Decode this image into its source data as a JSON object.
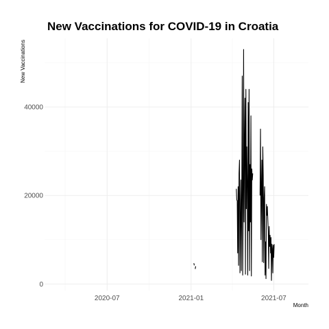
{
  "chart_data": {
    "type": "line",
    "title": "New Vaccinations for COVID-19 in Croatia",
    "xlabel": "Month",
    "ylabel": "New Vaccinations",
    "x_range": [
      "2020-02-15",
      "2021-09-15"
    ],
    "ylim": [
      -1500,
      55500
    ],
    "x_ticks": [
      {
        "date": "2020-07-01",
        "label": "2020-07"
      },
      {
        "date": "2021-01-01",
        "label": "2021-01"
      },
      {
        "date": "2021-07-01",
        "label": "2021-07"
      }
    ],
    "y_ticks": [
      {
        "value": 0,
        "label": "0"
      },
      {
        "value": 20000,
        "label": "20000"
      },
      {
        "value": 40000,
        "label": "40000"
      }
    ],
    "grid": true,
    "line_color": "#000000",
    "series": [
      {
        "segments": [
          [
            [
              "2021-01-07",
              4700
            ],
            [
              "2021-01-08",
              4200
            ]
          ],
          [
            [
              "2021-01-10",
              3400
            ],
            [
              "2021-01-11",
              4000
            ]
          ],
          [
            [
              "2021-04-10",
              21500
            ],
            [
              "2021-04-11",
              19000
            ],
            [
              "2021-04-12",
              18800
            ],
            [
              "2021-04-13",
              7000
            ],
            [
              "2021-04-14",
              22000
            ],
            [
              "2021-04-15",
              4200
            ],
            [
              "2021-04-16",
              25000
            ],
            [
              "2021-04-17",
              28000
            ],
            [
              "2021-04-18",
              2500
            ],
            [
              "2021-04-19",
              15000
            ],
            [
              "2021-04-20",
              23500
            ],
            [
              "2021-04-21",
              3000
            ],
            [
              "2021-04-22",
              21000
            ],
            [
              "2021-04-23",
              47000
            ],
            [
              "2021-04-24",
              2000
            ],
            [
              "2021-04-25",
              16000
            ],
            [
              "2021-04-26",
              53000
            ],
            [
              "2021-04-27",
              14000
            ],
            [
              "2021-04-28",
              32000
            ],
            [
              "2021-04-29",
              42000
            ],
            [
              "2021-04-30",
              2200
            ],
            [
              "2021-05-01",
              44000
            ],
            [
              "2021-05-02",
              17000
            ],
            [
              "2021-05-03",
              31000
            ],
            [
              "2021-05-04",
              22500
            ],
            [
              "2021-05-05",
              2000
            ],
            [
              "2021-05-06",
              41000
            ],
            [
              "2021-05-07",
              12000
            ],
            [
              "2021-05-08",
              44000
            ],
            [
              "2021-05-09",
              3000
            ],
            [
              "2021-05-10",
              27000
            ],
            [
              "2021-05-11",
              14000
            ],
            [
              "2021-05-12",
              38000
            ],
            [
              "2021-05-13",
              1800
            ],
            [
              "2021-05-14",
              26000
            ],
            [
              "2021-05-15",
              23500
            ],
            [
              "2021-05-16",
              25000
            ]
          ],
          [
            [
              "2021-06-01",
              20000
            ],
            [
              "2021-06-02",
              35000
            ],
            [
              "2021-06-03",
              10000
            ],
            [
              "2021-06-04",
              21500
            ],
            [
              "2021-06-05",
              28000
            ],
            [
              "2021-06-06",
              5000
            ],
            [
              "2021-06-07",
              31000
            ],
            [
              "2021-06-08",
              24500
            ],
            [
              "2021-06-09",
              4800
            ],
            [
              "2021-06-10",
              19500
            ],
            [
              "2021-06-11",
              22000
            ],
            [
              "2021-06-12",
              2000
            ],
            [
              "2021-06-13",
              9500
            ],
            [
              "2021-06-14",
              1200
            ],
            [
              "2021-06-15",
              18000
            ],
            [
              "2021-06-16",
              15500
            ],
            [
              "2021-06-17",
              17500
            ],
            [
              "2021-06-18",
              14500
            ],
            [
              "2021-06-19",
              12000
            ],
            [
              "2021-06-20",
              3500
            ],
            [
              "2021-06-21",
              13000
            ],
            [
              "2021-06-22",
              8500
            ],
            [
              "2021-06-23",
              11000
            ],
            [
              "2021-06-24",
              7000
            ],
            [
              "2021-06-25",
              10500
            ],
            [
              "2021-06-26",
              800
            ],
            [
              "2021-06-27",
              9000
            ],
            [
              "2021-06-28",
              8000
            ],
            [
              "2021-06-29",
              2500
            ],
            [
              "2021-06-30",
              8800
            ],
            [
              "2021-07-01",
              6000
            ],
            [
              "2021-07-02",
              9000
            ]
          ]
        ]
      }
    ]
  }
}
